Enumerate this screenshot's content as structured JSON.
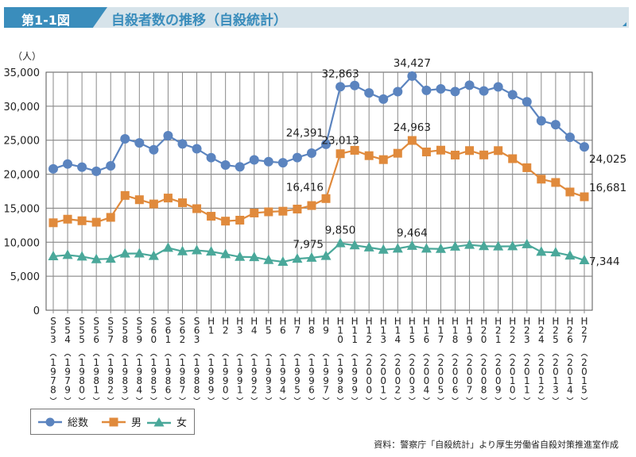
{
  "header": {
    "figure_no": "第1-1図",
    "title": "自殺者数の推移（自殺統計）"
  },
  "source": "資料：警察庁「自殺統計」より厚生労働省自殺対策推進室作成",
  "colors": {
    "total": "#5b84bf",
    "male": "#e08a3c",
    "female": "#4aa89a",
    "title_accent": "#3a8dbc"
  },
  "chart_data": {
    "type": "line",
    "title": "自殺者数の推移（自殺統計）",
    "ylabel": "（人）",
    "xlabel": "",
    "ylim": [
      0,
      35000
    ],
    "yticks": [
      0,
      5000,
      10000,
      15000,
      20000,
      25000,
      30000,
      35000
    ],
    "ytick_labels": [
      "0",
      "5,000",
      "10,000",
      "15,000",
      "20,000",
      "25,000",
      "30,000",
      "35,000"
    ],
    "grid": true,
    "legend_position": "bottom-left",
    "categories": [
      "S53",
      "S54",
      "S55",
      "S56",
      "S57",
      "S58",
      "S59",
      "S60",
      "S61",
      "S62",
      "S63",
      "H1",
      "H2",
      "H3",
      "H4",
      "H5",
      "H6",
      "H7",
      "H8",
      "H9",
      "H10",
      "H11",
      "H12",
      "H13",
      "H14",
      "H15",
      "H16",
      "H17",
      "H18",
      "H19",
      "H20",
      "H21",
      "H22",
      "H23",
      "H24",
      "H25",
      "H26",
      "H27"
    ],
    "years": [
      "1978",
      "1979",
      "1980",
      "1981",
      "1982",
      "1983",
      "1984",
      "1985",
      "1986",
      "1987",
      "1988",
      "1989",
      "1990",
      "1991",
      "1992",
      "1993",
      "1994",
      "1995",
      "1996",
      "1997",
      "1998",
      "1999",
      "2000",
      "2001",
      "2002",
      "2003",
      "2004",
      "2005",
      "2006",
      "2007",
      "2008",
      "2009",
      "2010",
      "2011",
      "2012",
      "2013",
      "2014",
      "2015"
    ],
    "series": [
      {
        "name": "総数",
        "key": "total",
        "marker": "circle",
        "values": [
          20788,
          21503,
          21048,
          20434,
          21228,
          25202,
          24596,
          23599,
          25667,
          24460,
          23742,
          22436,
          21346,
          21084,
          22104,
          21851,
          21679,
          22445,
          23104,
          24391,
          32863,
          33048,
          31957,
          31042,
          32143,
          34427,
          32325,
          32552,
          32155,
          33093,
          32249,
          32845,
          31690,
          30651,
          27858,
          27283,
          25427,
          24025
        ]
      },
      {
        "name": "男",
        "key": "male",
        "marker": "square",
        "values": [
          12859,
          13386,
          13155,
          12942,
          13654,
          16876,
          16251,
          15624,
          16497,
          15802,
          14934,
          13818,
          13102,
          13242,
          14296,
          14468,
          14560,
          14874,
          15393,
          16416,
          23013,
          23512,
          22727,
          22144,
          23080,
          24963,
          23272,
          23540,
          22813,
          23478,
          22831,
          23472,
          22283,
          20955,
          19273,
          18787,
          17386,
          16681
        ]
      },
      {
        "name": "女",
        "key": "female",
        "marker": "triangle",
        "values": [
          7929,
          8117,
          7893,
          7492,
          7574,
          8326,
          8345,
          7975,
          9170,
          8658,
          8808,
          8618,
          8244,
          7842,
          7808,
          7383,
          7119,
          7571,
          7711,
          7975,
          9850,
          9536,
          9230,
          8898,
          9063,
          9464,
          9053,
          9012,
          9342,
          9615,
          9418,
          9373,
          9407,
          9696,
          8585,
          8496,
          8041,
          7344
        ]
      }
    ],
    "annotations": [
      {
        "series": "total",
        "index": 19,
        "text": "24,391"
      },
      {
        "series": "total",
        "index": 20,
        "text": "32,863"
      },
      {
        "series": "total",
        "index": 25,
        "text": "34,427"
      },
      {
        "series": "total",
        "index": 37,
        "text": "24,025"
      },
      {
        "series": "male",
        "index": 19,
        "text": "16,416"
      },
      {
        "series": "male",
        "index": 20,
        "text": "23,013"
      },
      {
        "series": "male",
        "index": 25,
        "text": "24,963"
      },
      {
        "series": "male",
        "index": 37,
        "text": "16,681"
      },
      {
        "series": "female",
        "index": 19,
        "text": "7,975"
      },
      {
        "series": "female",
        "index": 20,
        "text": "9,850"
      },
      {
        "series": "female",
        "index": 25,
        "text": "9,464"
      },
      {
        "series": "female",
        "index": 37,
        "text": "7,344"
      }
    ]
  }
}
